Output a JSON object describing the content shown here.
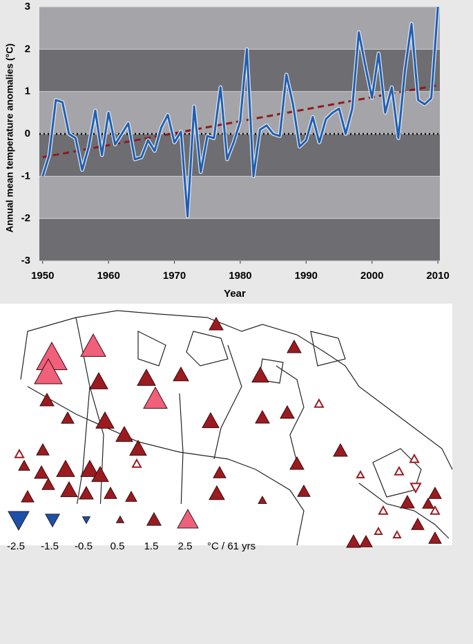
{
  "chart_data": {
    "type": "line",
    "ylabel": "Annual mean temperature anomalies (°C)",
    "xlabel": "Year",
    "x": [
      1950,
      1951,
      1952,
      1953,
      1954,
      1955,
      1956,
      1957,
      1958,
      1959,
      1960,
      1961,
      1962,
      1963,
      1964,
      1965,
      1966,
      1967,
      1968,
      1969,
      1970,
      1971,
      1972,
      1973,
      1974,
      1975,
      1976,
      1977,
      1978,
      1979,
      1980,
      1981,
      1982,
      1983,
      1984,
      1985,
      1986,
      1987,
      1988,
      1989,
      1990,
      1991,
      1992,
      1993,
      1994,
      1995,
      1996,
      1997,
      1998,
      1999,
      2000,
      2001,
      2002,
      2003,
      2004,
      2005,
      2006,
      2007,
      2008,
      2009,
      2010
    ],
    "series": [
      {
        "color": "#1f5fb0",
        "values": [
          -1.0,
          -0.5,
          0.8,
          0.75,
          0.0,
          -0.1,
          -0.85,
          -0.3,
          0.55,
          -0.5,
          0.5,
          -0.25,
          0.0,
          0.25,
          -0.6,
          -0.55,
          -0.15,
          -0.4,
          0.15,
          0.45,
          -0.2,
          0.05,
          -1.95,
          0.65,
          -0.9,
          -0.05,
          -0.1,
          1.1,
          -0.6,
          -0.2,
          0.3,
          2.0,
          -1.0,
          0.1,
          0.2,
          0.0,
          -0.05,
          1.4,
          0.7,
          -0.3,
          -0.15,
          0.4,
          -0.2,
          0.35,
          0.5,
          0.6,
          0.0,
          0.6,
          2.4,
          1.6,
          0.85,
          1.9,
          0.5,
          1.1,
          -0.1,
          1.5,
          2.6,
          0.8,
          0.7,
          0.85,
          3.0
        ]
      }
    ],
    "trend": {
      "color": "#8e1b1b",
      "x": [
        1950,
        2010
      ],
      "values": [
        -0.55,
        1.15
      ]
    },
    "reference_line": 0,
    "xlim": [
      1949.5,
      2010.3
    ],
    "ylim": [
      -3,
      3
    ],
    "xticks": [
      1950,
      1960,
      1970,
      1980,
      1990,
      2000,
      2010
    ],
    "yticks": [
      -3,
      -2,
      -1,
      0,
      1,
      2,
      3
    ],
    "band_colors": [
      "#6d6d72",
      "#a4a4a9"
    ]
  },
  "map_legend": {
    "items": [
      -2.5,
      -1.5,
      -0.5,
      0.5,
      1.5,
      2.5
    ],
    "unit": "°C / 61 yrs",
    "colors": {
      "negative": "#1f4fa8",
      "positive": "#9b1b20",
      "largest": "#f0607a"
    }
  }
}
